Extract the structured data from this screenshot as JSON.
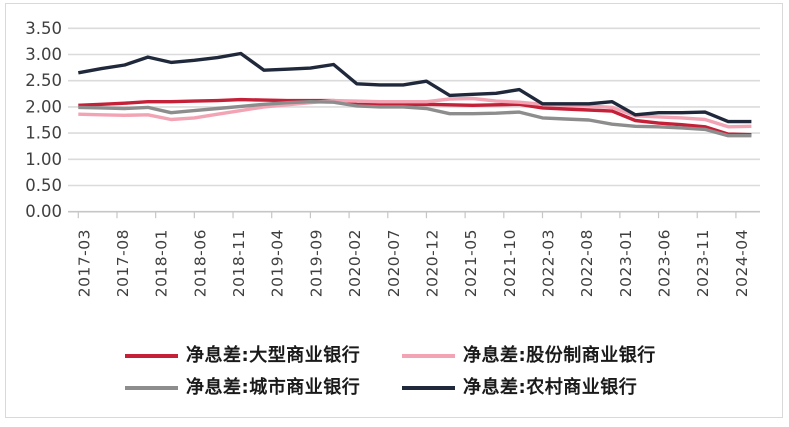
{
  "chart_data": {
    "type": "line",
    "title": "",
    "x": [
      "2017-03",
      "2017-06",
      "2017-09",
      "2017-12",
      "2018-03",
      "2018-06",
      "2018-09",
      "2018-12",
      "2019-03",
      "2019-06",
      "2019-09",
      "2019-12",
      "2020-03",
      "2020-06",
      "2020-09",
      "2020-12",
      "2021-03",
      "2021-06",
      "2021-09",
      "2021-12",
      "2022-03",
      "2022-06",
      "2022-09",
      "2022-12",
      "2023-03",
      "2023-06",
      "2023-09",
      "2023-12",
      "2024-03",
      "2024-06"
    ],
    "x_tick_labels": [
      "2017-03",
      "2017-08",
      "2018-01",
      "2018-06",
      "2018-11",
      "2019-04",
      "2019-09",
      "2020-02",
      "2020-07",
      "2020-12",
      "2021-05",
      "2021-10",
      "2022-03",
      "2022-08",
      "2023-01",
      "2023-06",
      "2023-11",
      "2024-04"
    ],
    "y_tick_labels": [
      "3.50",
      "3.00",
      "2.50",
      "2.00",
      "1.50",
      "1.00",
      "0.50",
      "0.00"
    ],
    "ylim": [
      0,
      3.5
    ],
    "y_tick_step": 0.5,
    "grid": "horizontal",
    "legend_position": "bottom",
    "series": [
      {
        "id": "large-commercial-banks",
        "name": "净息差:大型商业银行",
        "color": "#C42139",
        "values": [
          2.03,
          2.05,
          2.07,
          2.1,
          2.1,
          2.11,
          2.12,
          2.14,
          2.13,
          2.12,
          2.12,
          2.12,
          2.05,
          2.04,
          2.04,
          2.05,
          2.04,
          2.03,
          2.04,
          2.05,
          1.98,
          1.96,
          1.94,
          1.92,
          1.74,
          1.69,
          1.66,
          1.62,
          1.48,
          1.47
        ]
      },
      {
        "id": "joint-stock-commercial-banks",
        "name": "净息差:股份制商业银行",
        "color": "#F2A4B4",
        "values": [
          1.86,
          1.85,
          1.84,
          1.85,
          1.76,
          1.79,
          1.86,
          1.93,
          2.0,
          2.04,
          2.08,
          2.12,
          2.11,
          2.1,
          2.1,
          2.1,
          2.15,
          2.16,
          2.11,
          2.09,
          2.05,
          2.03,
          2.02,
          1.99,
          1.83,
          1.81,
          1.79,
          1.76,
          1.62,
          1.63
        ]
      },
      {
        "id": "city-commercial-banks",
        "name": "净息差:城市商业银行",
        "color": "#8D8D8D",
        "values": [
          1.99,
          1.98,
          1.97,
          1.99,
          1.89,
          1.93,
          1.97,
          2.01,
          2.05,
          2.08,
          2.1,
          2.09,
          2.02,
          2.0,
          2.0,
          1.97,
          1.87,
          1.87,
          1.88,
          1.9,
          1.79,
          1.77,
          1.75,
          1.67,
          1.63,
          1.62,
          1.6,
          1.57,
          1.45,
          1.45
        ]
      },
      {
        "id": "rural-commercial-banks",
        "name": "净息差:农村商业银行",
        "color": "#20293B",
        "values": [
          2.65,
          2.73,
          2.8,
          2.95,
          2.85,
          2.89,
          2.94,
          3.02,
          2.7,
          2.72,
          2.74,
          2.81,
          2.44,
          2.42,
          2.42,
          2.49,
          2.22,
          2.24,
          2.26,
          2.33,
          2.06,
          2.06,
          2.06,
          2.1,
          1.85,
          1.89,
          1.89,
          1.9,
          1.72,
          1.72
        ]
      }
    ]
  },
  "colors": {
    "background": "#FFFFFF",
    "frame": "#D9D9D9",
    "gridline": "#DBDBDB",
    "axis": "#C6C6C6",
    "tick_label": "#3F3F3F",
    "legend_text": "#1A1A1A"
  }
}
